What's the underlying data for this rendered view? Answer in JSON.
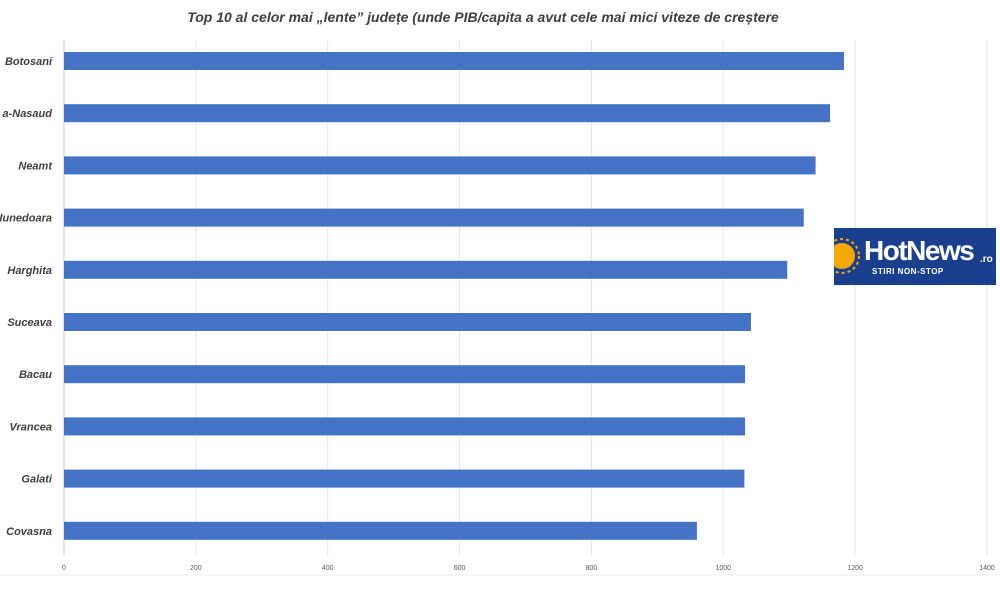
{
  "chart_data": {
    "type": "bar",
    "orientation": "horizontal",
    "title": "Top 10 al celor mai „lente” județe  (unde PIB/capita a avut cele mai mici viteze de creștere",
    "categories": [
      "Botosani",
      "a-Nasaud",
      "Neamt",
      "Iunedoara",
      "Harghita",
      "Suceava",
      "Bacau",
      "Vrancea",
      "Galati",
      "Covasna"
    ],
    "values": [
      1183,
      1162,
      1140,
      1122,
      1097,
      1042,
      1033,
      1033,
      1032,
      960
    ],
    "xlim": [
      0,
      1400
    ],
    "xticks": [
      "0",
      "200",
      "400",
      "600",
      "800",
      "1000",
      "1200",
      "1400"
    ],
    "grid": true,
    "legend": "none",
    "bar_color": "#4472c4"
  },
  "logo": {
    "brand": "HotNews",
    "domain": ".ro",
    "tagline": "STIRI NON-STOP",
    "background": "#1b3f8f",
    "accent": "#f5a800",
    "icon": "sun-icon"
  }
}
